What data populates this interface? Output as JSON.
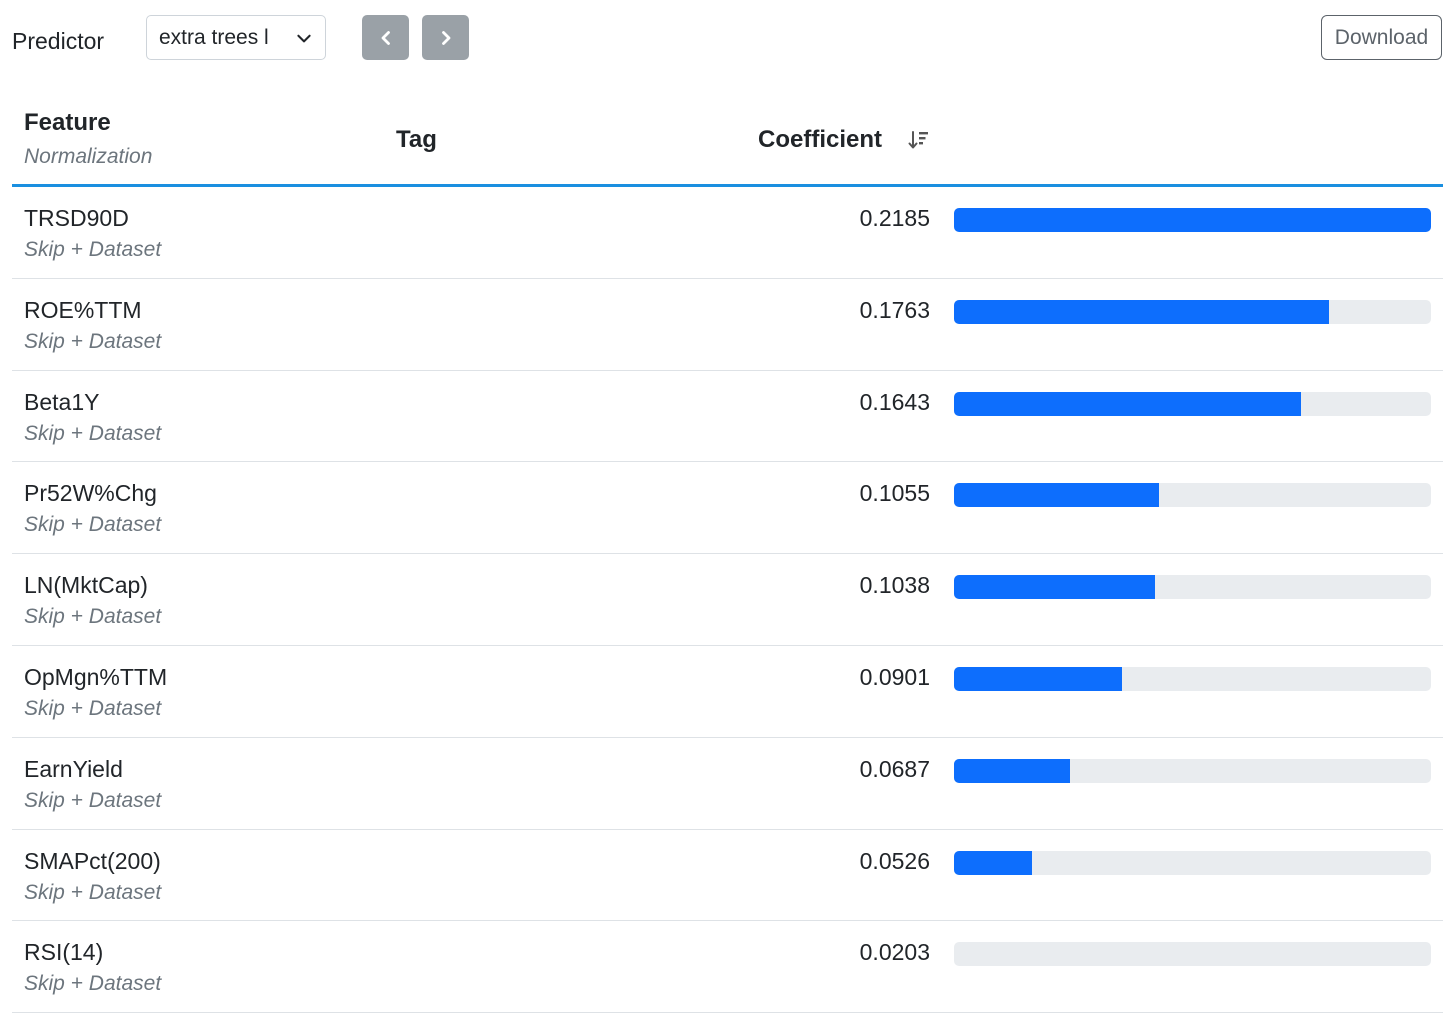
{
  "toolbar": {
    "predictor_label": "Predictor",
    "predictor_selected": "extra trees l",
    "download_label": "Download"
  },
  "table": {
    "headers": {
      "feature": "Feature",
      "normalization": "Normalization",
      "tag": "Tag",
      "coefficient": "Coefficient"
    },
    "rows": [
      {
        "feature": "TRSD90D",
        "normalization": "Skip + Dataset",
        "coefficient": "0.2185",
        "bar_fraction": 1.0
      },
      {
        "feature": "ROE%TTM",
        "normalization": "Skip + Dataset",
        "coefficient": "0.1763",
        "bar_fraction": 0.787
      },
      {
        "feature": "Beta1Y",
        "normalization": "Skip + Dataset",
        "coefficient": "0.1643",
        "bar_fraction": 0.727
      },
      {
        "feature": "Pr52W%Chg",
        "normalization": "Skip + Dataset",
        "coefficient": "0.1055",
        "bar_fraction": 0.43
      },
      {
        "feature": "LN(MktCap)",
        "normalization": "Skip + Dataset",
        "coefficient": "0.1038",
        "bar_fraction": 0.421
      },
      {
        "feature": "OpMgn%TTM",
        "normalization": "Skip + Dataset",
        "coefficient": "0.0901",
        "bar_fraction": 0.352
      },
      {
        "feature": "EarnYield",
        "normalization": "Skip + Dataset",
        "coefficient": "0.0687",
        "bar_fraction": 0.244
      },
      {
        "feature": "SMAPct(200)",
        "normalization": "Skip + Dataset",
        "coefficient": "0.0526",
        "bar_fraction": 0.163
      },
      {
        "feature": "RSI(14)",
        "normalization": "Skip + Dataset",
        "coefficient": "0.0203",
        "bar_fraction": 0.0
      }
    ]
  },
  "colors": {
    "bar_fill": "#0d6efd",
    "bar_track": "#e9ecef",
    "header_rule": "#1a8fe0",
    "nav_button": "#9aa1a7"
  },
  "icons": {
    "select_chevron": "chevron-down-icon",
    "prev": "chevron-left-icon",
    "next": "chevron-right-icon",
    "sort": "sort-descending-icon"
  }
}
